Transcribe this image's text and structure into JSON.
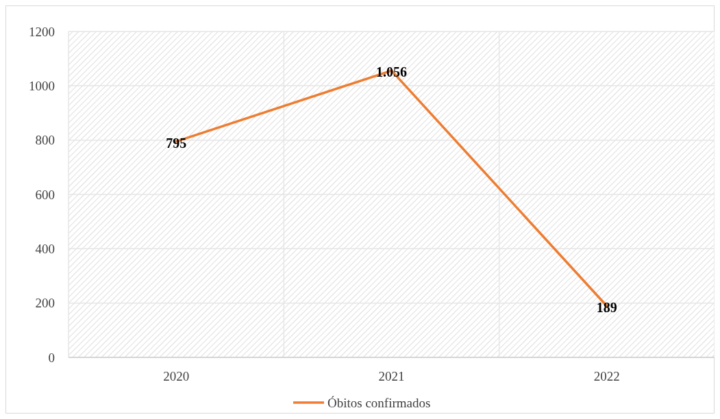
{
  "chart_data": {
    "type": "line",
    "categories": [
      "2020",
      "2021",
      "2022"
    ],
    "series": [
      {
        "name": "Óbitos confirmados",
        "color": "#ed7d31",
        "values": [
          795,
          1056,
          189
        ],
        "value_labels": [
          "795",
          "1.056",
          "189"
        ]
      }
    ],
    "ylim": [
      0,
      1200
    ],
    "yticks": [
      0,
      200,
      400,
      600,
      800,
      1000,
      1200
    ],
    "grid": true,
    "legend": "bottom",
    "marker": "none",
    "line_style": "solid"
  }
}
